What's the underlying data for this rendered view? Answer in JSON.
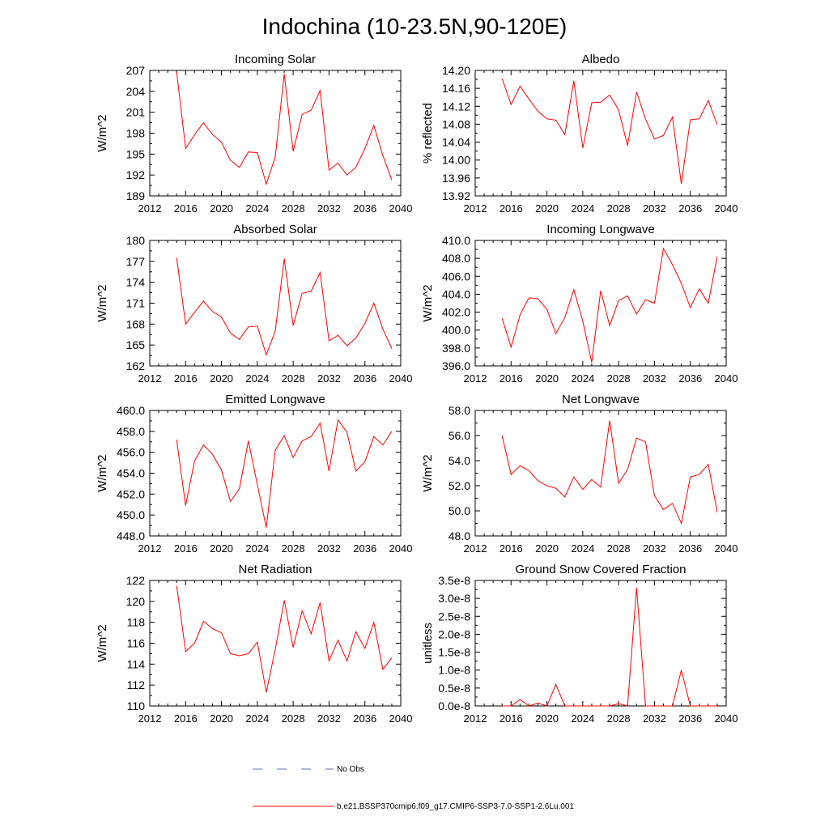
{
  "figure": {
    "title": "Indochina (10-23.5N,90-120E)",
    "legend": {
      "items": [
        {
          "label": "No Obs",
          "style": "dashed",
          "color": "#5b6fb5"
        },
        {
          "label": "b.e21.BSSP370cmip6.f09_g17.CMIP6-SSP3-7.0-SSP1-2.6Lu.001",
          "style": "solid",
          "color": "#ff0000"
        }
      ]
    },
    "series_color": "#ff0000"
  },
  "chart_data": [
    {
      "type": "line",
      "title": "Incoming Solar",
      "ylabel": "W/m^2",
      "xlim": [
        2012,
        2040
      ],
      "xticks": [
        2012,
        2016,
        2020,
        2024,
        2028,
        2032,
        2036,
        2040
      ],
      "ylim": [
        189,
        207
      ],
      "yticks": [
        "189",
        "192",
        "195",
        "198",
        "201",
        "204",
        "207"
      ],
      "series": [
        {
          "x": [
            2015,
            2016,
            2017,
            2018,
            2019,
            2020,
            2021,
            2022,
            2023,
            2024,
            2025,
            2026,
            2027,
            2028,
            2029,
            2030,
            2031,
            2032,
            2033,
            2034,
            2035,
            2036,
            2037,
            2038,
            2039
          ],
          "values": [
            206.8,
            195.8,
            197.8,
            199.5,
            197.8,
            196.7,
            194.1,
            193.1,
            195.3,
            195.2,
            190.7,
            194.6,
            206.5,
            195.4,
            200.7,
            201.3,
            204.1,
            192.7,
            193.7,
            192.0,
            193.1,
            195.8,
            199.1,
            194.8,
            191.3
          ]
        }
      ]
    },
    {
      "type": "line",
      "title": "Albedo",
      "ylabel": "% reflected",
      "xlim": [
        2012,
        2040
      ],
      "xticks": [
        2012,
        2016,
        2020,
        2024,
        2028,
        2032,
        2036,
        2040
      ],
      "ylim": [
        13.92,
        14.2
      ],
      "yticks": [
        "13.92",
        "13.96",
        "14.00",
        "14.04",
        "14.08",
        "14.12",
        "14.16",
        "14.20"
      ],
      "series": [
        {
          "x": [
            2015,
            2016,
            2017,
            2018,
            2019,
            2020,
            2021,
            2022,
            2023,
            2024,
            2025,
            2026,
            2027,
            2028,
            2029,
            2030,
            2031,
            2032,
            2033,
            2034,
            2035,
            2036,
            2037,
            2038,
            2039
          ],
          "values": [
            14.182,
            14.124,
            14.165,
            14.136,
            14.109,
            14.092,
            14.089,
            14.057,
            14.177,
            14.027,
            14.128,
            14.129,
            14.145,
            14.112,
            14.032,
            14.152,
            14.091,
            14.047,
            14.055,
            14.096,
            13.947,
            14.09,
            14.092,
            14.133,
            14.079
          ]
        }
      ]
    },
    {
      "type": "line",
      "title": "Absorbed Solar",
      "ylabel": "W/m^2",
      "xlim": [
        2012,
        2040
      ],
      "xticks": [
        2012,
        2016,
        2020,
        2024,
        2028,
        2032,
        2036,
        2040
      ],
      "ylim": [
        162,
        180
      ],
      "yticks": [
        "162",
        "165",
        "168",
        "171",
        "174",
        "177",
        "180"
      ],
      "series": [
        {
          "x": [
            2015,
            2016,
            2017,
            2018,
            2019,
            2020,
            2021,
            2022,
            2023,
            2024,
            2025,
            2026,
            2027,
            2028,
            2029,
            2030,
            2031,
            2032,
            2033,
            2034,
            2035,
            2036,
            2037,
            2038,
            2039
          ],
          "values": [
            177.5,
            168.0,
            169.7,
            171.3,
            169.8,
            169.0,
            166.7,
            165.8,
            167.6,
            167.7,
            163.6,
            167.0,
            177.4,
            167.8,
            172.4,
            172.7,
            175.4,
            165.6,
            166.4,
            164.9,
            166.0,
            168.1,
            171.0,
            167.3,
            164.5
          ]
        }
      ]
    },
    {
      "type": "line",
      "title": "Incoming Longwave",
      "ylabel": "W/m^2",
      "xlim": [
        2012,
        2040
      ],
      "xticks": [
        2012,
        2016,
        2020,
        2024,
        2028,
        2032,
        2036,
        2040
      ],
      "ylim": [
        396.0,
        410.0
      ],
      "yticks": [
        "396.0",
        "398.0",
        "400.0",
        "402.0",
        "404.0",
        "406.0",
        "408.0",
        "410.0"
      ],
      "series": [
        {
          "x": [
            2015,
            2016,
            2017,
            2018,
            2019,
            2020,
            2021,
            2022,
            2023,
            2024,
            2025,
            2026,
            2027,
            2028,
            2029,
            2030,
            2031,
            2032,
            2033,
            2034,
            2035,
            2036,
            2037,
            2038,
            2039
          ],
          "values": [
            401.3,
            398.1,
            401.7,
            403.6,
            403.5,
            402.3,
            399.6,
            401.4,
            404.5,
            401.0,
            396.4,
            404.4,
            400.5,
            403.3,
            403.8,
            401.8,
            403.4,
            403.0,
            409.1,
            407.3,
            405.2,
            402.5,
            404.6,
            403.0,
            408.2
          ]
        }
      ]
    },
    {
      "type": "line",
      "title": "Emitted Longwave",
      "ylabel": "W/m^2",
      "xlim": [
        2012,
        2040
      ],
      "xticks": [
        2012,
        2016,
        2020,
        2024,
        2028,
        2032,
        2036,
        2040
      ],
      "ylim": [
        448.0,
        460.0
      ],
      "yticks": [
        "448.0",
        "450.0",
        "452.0",
        "454.0",
        "456.0",
        "458.0",
        "460.0"
      ],
      "series": [
        {
          "x": [
            2015,
            2016,
            2017,
            2018,
            2019,
            2020,
            2021,
            2022,
            2023,
            2024,
            2025,
            2026,
            2027,
            2028,
            2029,
            2030,
            2031,
            2032,
            2033,
            2034,
            2035,
            2036,
            2037,
            2038,
            2039
          ],
          "values": [
            457.2,
            450.9,
            455.2,
            456.7,
            455.8,
            454.3,
            451.3,
            452.5,
            457.1,
            452.9,
            448.8,
            456.2,
            457.6,
            455.5,
            457.1,
            457.5,
            458.8,
            454.2,
            459.1,
            457.9,
            454.2,
            455.1,
            457.5,
            456.7,
            458.0
          ]
        }
      ]
    },
    {
      "type": "line",
      "title": "Net Longwave",
      "ylabel": "W/m^2",
      "xlim": [
        2012,
        2040
      ],
      "xticks": [
        2012,
        2016,
        2020,
        2024,
        2028,
        2032,
        2036,
        2040
      ],
      "ylim": [
        48.0,
        58.0
      ],
      "yticks": [
        "48.0",
        "50.0",
        "52.0",
        "54.0",
        "56.0",
        "58.0"
      ],
      "series": [
        {
          "x": [
            2015,
            2016,
            2017,
            2018,
            2019,
            2020,
            2021,
            2022,
            2023,
            2024,
            2025,
            2026,
            2027,
            2028,
            2029,
            2030,
            2031,
            2032,
            2033,
            2034,
            2035,
            2036,
            2037,
            2038,
            2039
          ],
          "values": [
            56.0,
            52.9,
            53.6,
            53.2,
            52.4,
            52.0,
            51.8,
            51.1,
            52.7,
            51.7,
            52.5,
            51.9,
            57.2,
            52.2,
            53.3,
            55.8,
            55.5,
            51.2,
            50.1,
            50.6,
            49.0,
            52.7,
            52.9,
            53.7,
            49.9
          ]
        }
      ]
    },
    {
      "type": "line",
      "title": "Net Radiation",
      "ylabel": "W/m^2",
      "xlim": [
        2012,
        2040
      ],
      "xticks": [
        2012,
        2016,
        2020,
        2024,
        2028,
        2032,
        2036,
        2040
      ],
      "ylim": [
        110,
        122
      ],
      "yticks": [
        "110",
        "112",
        "114",
        "116",
        "118",
        "120",
        "122"
      ],
      "series": [
        {
          "x": [
            2015,
            2016,
            2017,
            2018,
            2019,
            2020,
            2021,
            2022,
            2023,
            2024,
            2025,
            2026,
            2027,
            2028,
            2029,
            2030,
            2031,
            2032,
            2033,
            2034,
            2035,
            2036,
            2037,
            2038,
            2039
          ],
          "values": [
            121.5,
            115.2,
            116.0,
            118.1,
            117.4,
            117.0,
            115.0,
            114.8,
            115.0,
            116.1,
            111.3,
            115.4,
            120.1,
            115.6,
            119.1,
            116.9,
            119.9,
            114.3,
            116.3,
            114.3,
            117.1,
            115.5,
            118.0,
            113.5,
            114.6
          ]
        }
      ]
    },
    {
      "type": "line",
      "title": "Ground Snow Covered Fraction",
      "ylabel": "unitless",
      "xlim": [
        2012,
        2040
      ],
      "xticks": [
        2012,
        2016,
        2020,
        2024,
        2028,
        2032,
        2036,
        2040
      ],
      "ylim": [
        0,
        3.5e-08
      ],
      "yticks": [
        "0.0e-8",
        "0.5e-8",
        "1.0e-8",
        "1.5e-8",
        "2.0e-8",
        "2.5e-8",
        "3.0e-8",
        "3.5e-8"
      ],
      "series": [
        {
          "x": [
            2015,
            2016,
            2017,
            2018,
            2019,
            2020,
            2021,
            2022,
            2023,
            2024,
            2025,
            2026,
            2027,
            2028,
            2029,
            2030,
            2031,
            2032,
            2033,
            2034,
            2035,
            2036,
            2037,
            2038,
            2039
          ],
          "values": [
            0,
            0,
            1.8e-09,
            0,
            8e-10,
            0,
            6e-09,
            0,
            0,
            0,
            0,
            0,
            0,
            6e-10,
            0,
            3.3e-08,
            0,
            0,
            0,
            0,
            1e-08,
            0,
            0,
            0,
            0
          ]
        }
      ]
    }
  ]
}
